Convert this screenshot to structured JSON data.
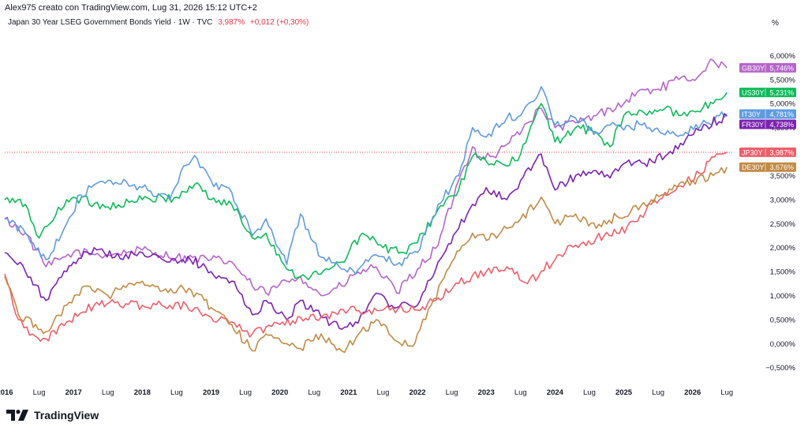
{
  "header": {
    "author_line": "Alex975 creato con TradingView.com, Lug 31, 2026 15:12 UTC+2",
    "symbol": "Japan 30 Year LSEG Government Bonds Yield · 1W · TVC",
    "last_value": "3,987%",
    "change": "+0,012 (+0,30%)"
  },
  "unit_label": "%",
  "brand": "TradingView",
  "colors": {
    "GB30Y": "#b565c9",
    "US30Y": "#0ebb5a",
    "IT30Y": "#5e9be0",
    "FR30Y": "#7b22b0",
    "JP30Y": "#ef5e6a",
    "DE30Y": "#c28a45",
    "axis_text": "#131722",
    "change_red": "#f23645"
  },
  "chart_data": {
    "type": "line",
    "title": "Japan 30 Year LSEG Government Bonds Yield · 1W · TVC",
    "xlabel": "",
    "ylabel": "%",
    "xlim": [
      2016.0,
      2026.6
    ],
    "ylim": [
      -0.85,
      6.5
    ],
    "y_ticks": [
      -0.5,
      0,
      0.5,
      1,
      1.5,
      2,
      2.5,
      3,
      3.5,
      4.5,
      5,
      5.5,
      6
    ],
    "y_tick_labels": [
      "−0,500%",
      "0,000%",
      "0,500%",
      "1,000%",
      "1,500%",
      "2,000%",
      "2,500%",
      "3,000%",
      "3,500%",
      "4,500%",
      "5,000%",
      "5,500%",
      "6,000%"
    ],
    "x_ticks": [
      2016.0,
      2016.5,
      2017.0,
      2017.5,
      2018.0,
      2018.5,
      2019.0,
      2019.5,
      2020.0,
      2020.5,
      2021.0,
      2021.5,
      2022.0,
      2022.5,
      2023.0,
      2023.5,
      2024.0,
      2024.5,
      2025.0,
      2025.5,
      2026.0,
      2026.5
    ],
    "x_tick_labels": [
      "2016",
      "Lug",
      "2017",
      "Lug",
      "2018",
      "Lug",
      "2019",
      "Lug",
      "2020",
      "Lug",
      "2021",
      "Lug",
      "2022",
      "Lug",
      "2023",
      "Lug",
      "2024",
      "Lug",
      "2025",
      "Lug",
      "2026",
      "Lug"
    ],
    "grid": false,
    "reference_line": 3.987,
    "series": [
      {
        "name": "GB30Y",
        "last_label": "5,746%",
        "last": 5.746,
        "x": [
          2016.0,
          2016.3,
          2016.6,
          2016.8,
          2017.0,
          2017.5,
          2018.0,
          2018.5,
          2019.0,
          2019.3,
          2019.6,
          2019.8,
          2020.1,
          2020.3,
          2020.6,
          2020.9,
          2021.1,
          2021.4,
          2021.7,
          2022.0,
          2022.3,
          2022.6,
          2022.8,
          2022.9,
          2023.1,
          2023.3,
          2023.6,
          2023.8,
          2024.0,
          2024.3,
          2024.6,
          2024.8,
          2025.0,
          2025.2,
          2025.5,
          2025.8,
          2026.0,
          2026.3,
          2026.5
        ],
        "y": [
          2.6,
          2.3,
          1.6,
          1.75,
          1.9,
          1.85,
          1.95,
          1.8,
          1.75,
          1.7,
          1.2,
          1.05,
          1.3,
          1.4,
          1.0,
          1.2,
          1.45,
          1.6,
          1.05,
          1.55,
          2.05,
          3.4,
          4.1,
          3.9,
          3.9,
          4.15,
          4.6,
          4.9,
          4.5,
          4.6,
          4.75,
          4.9,
          5.0,
          5.25,
          5.3,
          5.5,
          5.5,
          5.9,
          5.746
        ]
      },
      {
        "name": "US30Y",
        "last_label": "5,231%",
        "last": 5.231,
        "x": [
          2016.0,
          2016.3,
          2016.5,
          2016.9,
          2017.0,
          2017.5,
          2018.0,
          2018.5,
          2018.8,
          2019.0,
          2019.3,
          2019.6,
          2019.8,
          2020.1,
          2020.3,
          2020.6,
          2020.9,
          2021.2,
          2021.5,
          2021.8,
          2022.0,
          2022.3,
          2022.6,
          2022.8,
          2023.0,
          2023.3,
          2023.5,
          2023.8,
          2024.0,
          2024.3,
          2024.6,
          2024.8,
          2025.0,
          2025.3,
          2025.6,
          2025.8,
          2026.0,
          2026.3,
          2026.5
        ],
        "y": [
          3.0,
          2.9,
          2.2,
          3.0,
          3.05,
          2.85,
          3.0,
          3.05,
          3.35,
          3.0,
          2.9,
          2.2,
          2.3,
          1.55,
          1.4,
          1.45,
          1.7,
          2.3,
          2.0,
          1.9,
          2.1,
          2.8,
          3.2,
          3.9,
          3.8,
          3.7,
          3.95,
          5.0,
          4.2,
          4.5,
          4.4,
          4.1,
          4.75,
          4.8,
          4.9,
          4.75,
          4.85,
          5.0,
          5.231
        ]
      },
      {
        "name": "IT30Y",
        "last_label": "4,781%",
        "last": 4.781,
        "x": [
          2016.0,
          2016.3,
          2016.6,
          2016.9,
          2017.1,
          2017.5,
          2018.0,
          2018.4,
          2018.6,
          2018.8,
          2019.0,
          2019.3,
          2019.6,
          2019.8,
          2020.1,
          2020.3,
          2020.6,
          2020.9,
          2021.1,
          2021.4,
          2021.7,
          2022.0,
          2022.3,
          2022.6,
          2022.8,
          2023.0,
          2023.3,
          2023.5,
          2023.8,
          2024.0,
          2024.3,
          2024.6,
          2024.8,
          2025.0,
          2025.3,
          2025.6,
          2025.9,
          2026.2,
          2026.5
        ],
        "y": [
          2.6,
          2.3,
          1.75,
          2.5,
          3.1,
          3.4,
          3.25,
          3.0,
          3.7,
          3.85,
          3.4,
          3.15,
          2.25,
          2.6,
          1.65,
          2.7,
          1.8,
          1.55,
          1.45,
          1.85,
          1.65,
          1.9,
          2.9,
          3.5,
          4.5,
          4.3,
          4.7,
          4.75,
          5.35,
          4.55,
          4.7,
          4.4,
          4.55,
          4.45,
          4.6,
          4.35,
          4.4,
          4.6,
          4.781
        ]
      },
      {
        "name": "FR30Y",
        "last_label": "4,738%",
        "last": 4.738,
        "x": [
          2016.0,
          2016.3,
          2016.6,
          2016.9,
          2017.0,
          2017.3,
          2017.6,
          2018.0,
          2018.4,
          2018.7,
          2019.0,
          2019.3,
          2019.6,
          2019.8,
          2020.1,
          2020.3,
          2020.6,
          2020.9,
          2021.1,
          2021.4,
          2021.7,
          2022.0,
          2022.3,
          2022.6,
          2022.8,
          2023.0,
          2023.3,
          2023.5,
          2023.8,
          2024.0,
          2024.3,
          2024.6,
          2024.8,
          2025.0,
          2025.3,
          2025.6,
          2025.9,
          2026.2,
          2026.5
        ],
        "y": [
          1.9,
          1.5,
          0.9,
          1.5,
          1.7,
          2.0,
          1.8,
          1.9,
          1.7,
          1.75,
          1.5,
          1.3,
          0.6,
          0.9,
          0.5,
          0.9,
          0.55,
          0.3,
          0.45,
          1.05,
          0.75,
          0.8,
          1.7,
          2.4,
          2.9,
          3.25,
          3.0,
          3.4,
          3.95,
          3.2,
          3.5,
          3.6,
          3.45,
          3.75,
          3.75,
          3.9,
          4.25,
          4.55,
          4.738
        ]
      },
      {
        "name": "JP30Y",
        "last_label": "3,987%",
        "last": 3.987,
        "x": [
          2016.0,
          2016.2,
          2016.4,
          2016.6,
          2016.9,
          2017.3,
          2017.6,
          2018.0,
          2018.4,
          2018.8,
          2019.0,
          2019.3,
          2019.6,
          2019.8,
          2020.0,
          2020.3,
          2020.6,
          2021.0,
          2021.3,
          2021.6,
          2022.0,
          2022.3,
          2022.6,
          2023.0,
          2023.3,
          2023.6,
          2024.0,
          2024.3,
          2024.6,
          2024.9,
          2025.2,
          2025.4,
          2025.6,
          2025.9,
          2026.1,
          2026.35,
          2026.5
        ],
        "y": [
          1.45,
          0.5,
          0.2,
          0.1,
          0.45,
          0.8,
          0.85,
          0.8,
          0.8,
          0.75,
          0.55,
          0.45,
          0.2,
          0.35,
          0.4,
          0.55,
          0.55,
          0.7,
          0.7,
          0.7,
          0.7,
          0.95,
          1.25,
          1.5,
          1.6,
          1.25,
          1.75,
          2.05,
          2.2,
          2.3,
          2.55,
          2.9,
          3.15,
          3.35,
          3.55,
          3.95,
          3.987
        ]
      },
      {
        "name": "DE30Y",
        "last_label": "3,676%",
        "last": 3.676,
        "x": [
          2016.0,
          2016.2,
          2016.45,
          2016.6,
          2016.9,
          2017.2,
          2017.5,
          2017.8,
          2018.0,
          2018.3,
          2018.6,
          2018.9,
          2019.0,
          2019.3,
          2019.6,
          2019.8,
          2020.1,
          2020.3,
          2020.6,
          2020.9,
          2021.1,
          2021.4,
          2021.7,
          2021.9,
          2022.0,
          2022.2,
          2022.5,
          2022.8,
          2023.0,
          2023.3,
          2023.5,
          2023.8,
          2024.0,
          2024.3,
          2024.6,
          2024.9,
          2025.1,
          2025.4,
          2025.7,
          2026.0,
          2026.3,
          2026.5
        ],
        "y": [
          1.4,
          0.6,
          0.4,
          0.25,
          0.8,
          1.2,
          1.0,
          1.25,
          1.3,
          1.1,
          1.15,
          0.9,
          0.75,
          0.4,
          -0.15,
          0.2,
          0.0,
          -0.1,
          0.2,
          -0.15,
          0.1,
          0.5,
          0.05,
          -0.05,
          0.2,
          0.8,
          1.7,
          2.3,
          2.15,
          2.4,
          2.6,
          3.05,
          2.5,
          2.7,
          2.4,
          2.65,
          2.75,
          3.0,
          3.2,
          3.4,
          3.5,
          3.676
        ]
      }
    ]
  }
}
